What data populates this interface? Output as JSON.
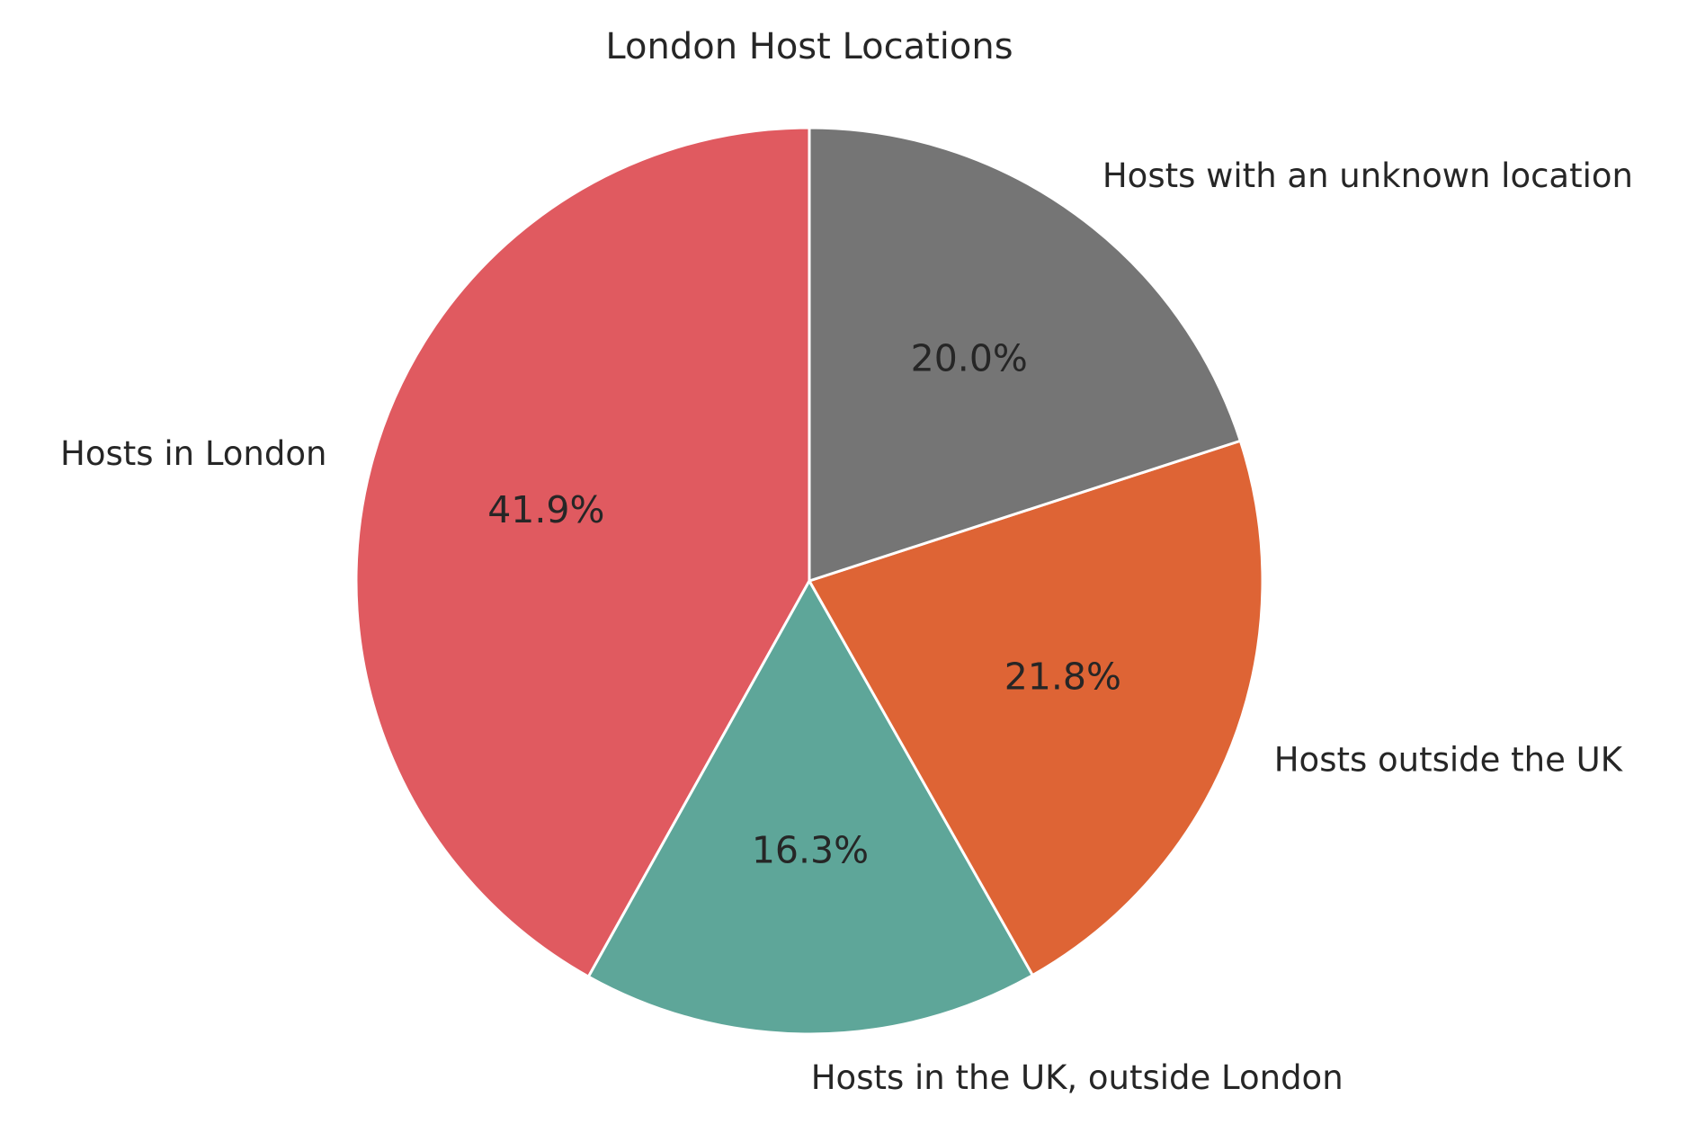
{
  "chart_data": {
    "type": "pie",
    "title": "London Host Locations",
    "start_angle_deg": 90,
    "direction": "counterclockwise",
    "slices": [
      {
        "label": "Hosts in London",
        "value": 41.9,
        "pct_label": "41.9%",
        "color": "#E05A60"
      },
      {
        "label": "Hosts in the UK, outside London",
        "value": 16.3,
        "pct_label": "16.3%",
        "color": "#5EA699"
      },
      {
        "label": "Hosts outside the UK",
        "value": 21.8,
        "pct_label": "21.8%",
        "color": "#DE6435"
      },
      {
        "label": "Hosts with an unknown location",
        "value": 20.0,
        "pct_label": "20.0%",
        "color": "#757575"
      }
    ],
    "legend": "none"
  }
}
